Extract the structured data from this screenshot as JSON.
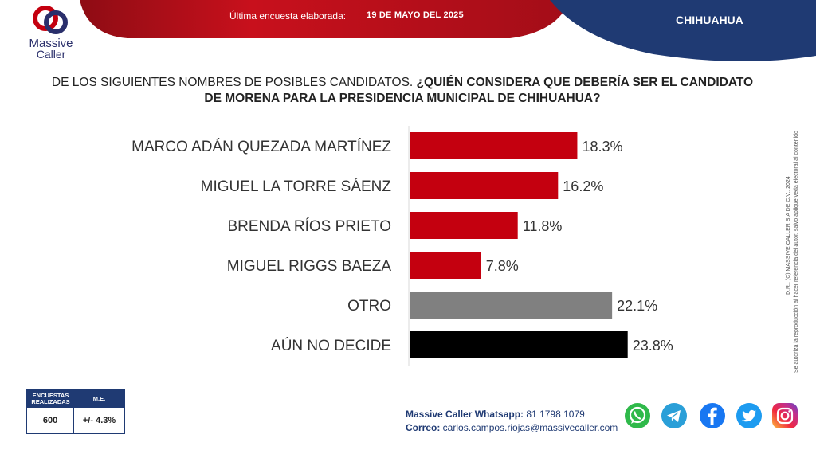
{
  "header": {
    "logo_line1": "Massive",
    "logo_line2": "Caller",
    "survey_label": "Última encuesta elaborada:",
    "survey_date": "19 DE MAYO DEL 2025",
    "region": "CHIHUAHUA"
  },
  "question": {
    "part1": "DE LOS SIGUIENTES NOMBRES DE POSIBLES CANDIDATOS. ",
    "part2": "¿QUIÉN CONSIDERA QUE DEBERÍA SER EL CANDIDATO",
    "part3": "DE MORENA PARA LA PRESIDENCIA MUNICIPAL DE CHIHUAHUA?"
  },
  "chart_data": {
    "type": "bar",
    "orientation": "horizontal",
    "categories": [
      "MARCO ADÁN QUEZADA MARTÍNEZ",
      "MIGUEL LA TORRE SÁENZ",
      "BRENDA RÍOS PRIETO",
      "MIGUEL RIGGS BAEZA",
      "OTRO",
      "AÚN NO DECIDE"
    ],
    "values": [
      18.3,
      16.2,
      11.8,
      7.8,
      22.1,
      23.8
    ],
    "value_labels": [
      "18.3%",
      "16.2%",
      "11.8%",
      "7.8%",
      "22.1%",
      "23.8%"
    ],
    "colors": [
      "#c4000f",
      "#c4000f",
      "#c4000f",
      "#c4000f",
      "#808080",
      "#000000"
    ],
    "grid": false,
    "legend": "none"
  },
  "side_note": {
    "line1": "D.R., (C) MASSIVE CALLER S.A DE C.V., 2024",
    "line2": "Se autoriza la reproducción al hacer referencia del autor, salvo aplique veda electoral al contenido"
  },
  "stats": {
    "h1": "ENCUESTAS REALIZADAS",
    "h2": "M.E.",
    "v1": "600",
    "v2": "+/- 4.3%"
  },
  "contact": {
    "wa_label": "Massive Caller Whatsapp:",
    "wa_value": " 81 1798 1079",
    "mail_label": "Correo:",
    "mail_value": " carlos.campos.riojas@massivecaller.com"
  },
  "social_icons": [
    "whatsapp-icon",
    "telegram-icon",
    "facebook-icon",
    "twitter-icon",
    "instagram-icon"
  ],
  "colors": {
    "brand_red": "#c4000f",
    "brand_navy": "#1f3a73",
    "other_gray": "#808080",
    "undecided_black": "#000000"
  }
}
